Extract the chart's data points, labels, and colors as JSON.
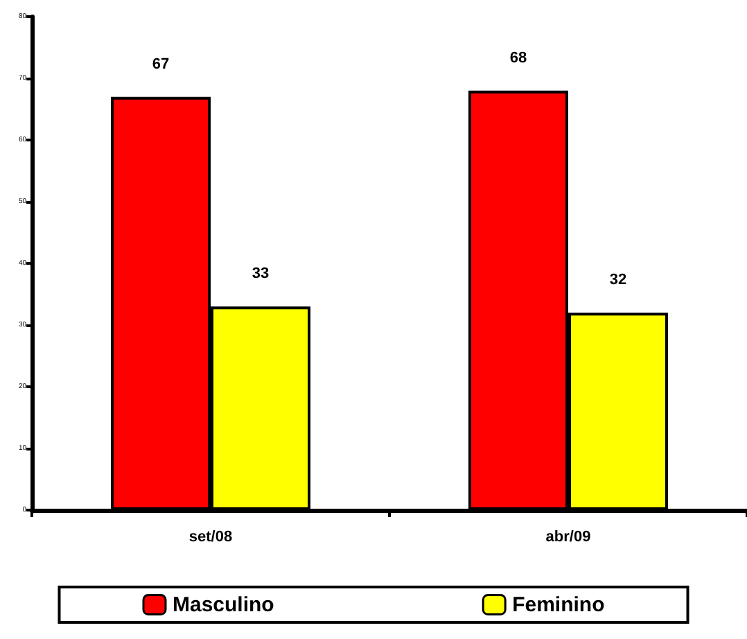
{
  "chart_data": {
    "type": "bar",
    "categories": [
      "set/08",
      "abr/09"
    ],
    "series": [
      {
        "name": "Masculino",
        "color": "#ff0000",
        "values": [
          67,
          68
        ]
      },
      {
        "name": "Feminino",
        "color": "#ffff00",
        "values": [
          33,
          32
        ]
      }
    ],
    "ylim": [
      0,
      80
    ],
    "yticks": [
      0,
      10,
      20,
      30,
      40,
      50,
      60,
      70,
      80
    ],
    "data_labels": true,
    "legend": "bottom"
  }
}
